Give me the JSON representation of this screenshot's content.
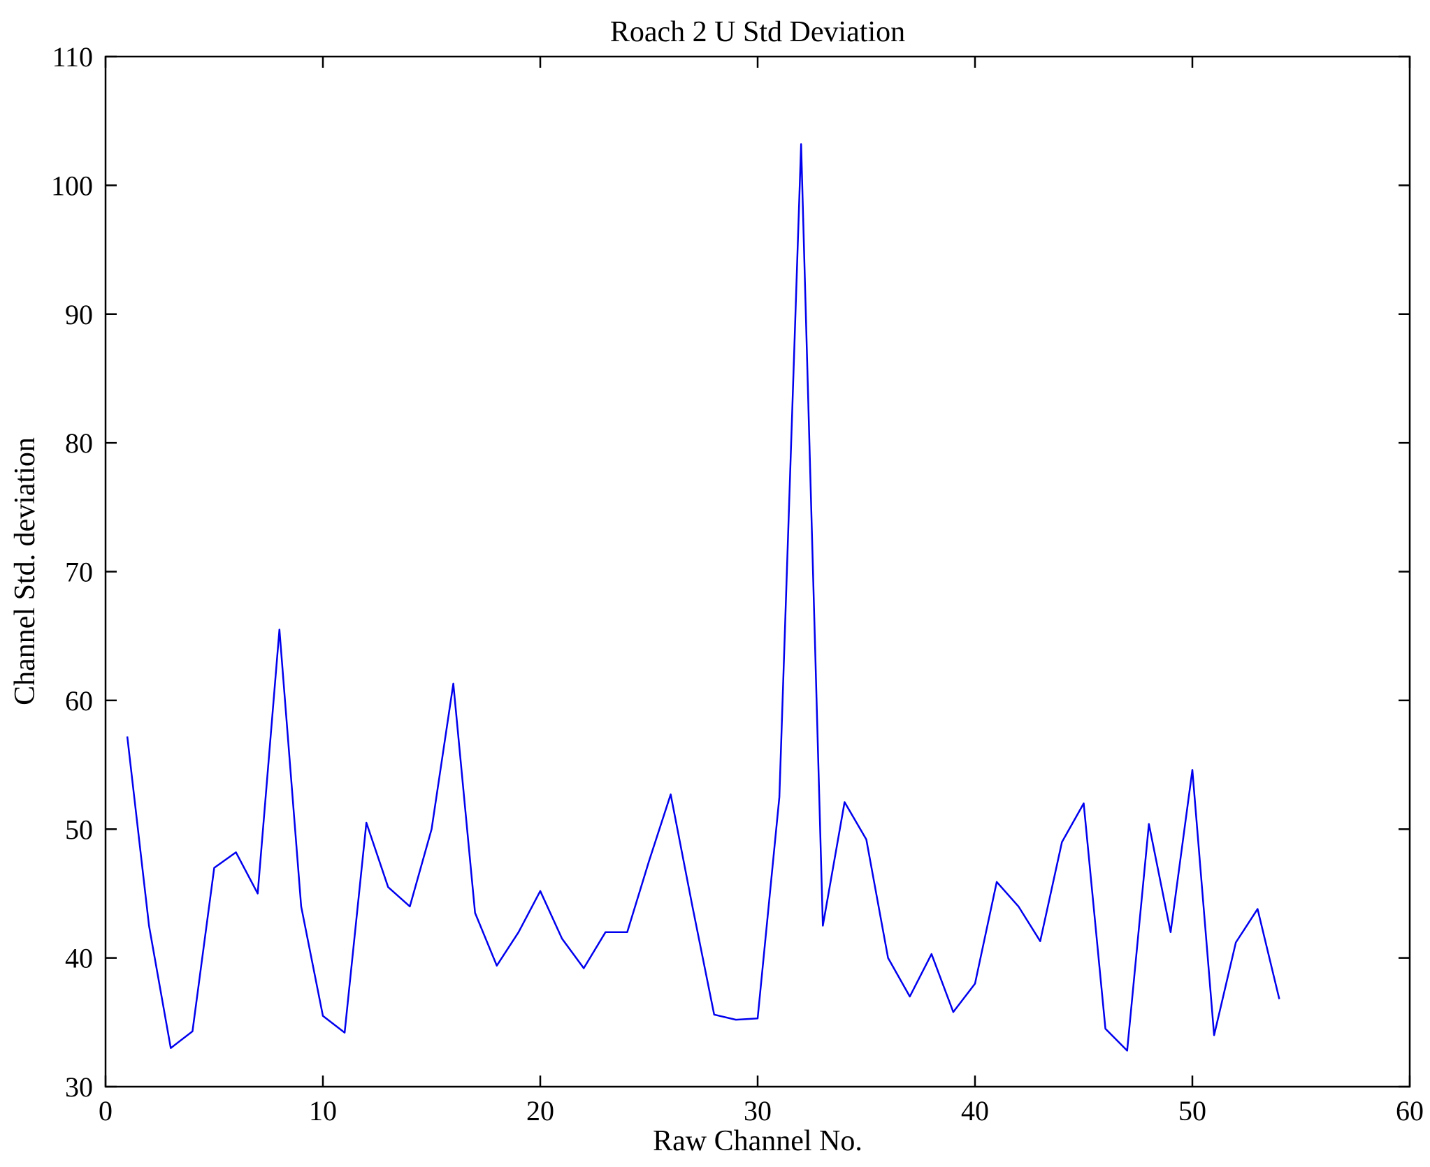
{
  "chart_data": {
    "type": "line",
    "title": "Roach 2 U Std Deviation",
    "xlabel": "Raw Channel No.",
    "ylabel": "Channel Std. deviation",
    "xlim": [
      0,
      60
    ],
    "ylim": [
      30,
      110
    ],
    "xticks": [
      0,
      10,
      20,
      30,
      40,
      50,
      60
    ],
    "yticks": [
      30,
      40,
      50,
      60,
      70,
      80,
      90,
      100,
      110
    ],
    "grid": false,
    "legend": "none",
    "line_color": "#0000EE",
    "frame_color": "#000000",
    "x": [
      1,
      2,
      3,
      4,
      5,
      6,
      7,
      8,
      9,
      10,
      11,
      12,
      13,
      14,
      15,
      16,
      17,
      18,
      19,
      20,
      21,
      22,
      23,
      24,
      25,
      26,
      27,
      28,
      29,
      30,
      31,
      32,
      33,
      34,
      35,
      36,
      37,
      38,
      39,
      40,
      41,
      42,
      43,
      44,
      45,
      46,
      47,
      48,
      49,
      50,
      51,
      52,
      53,
      54
    ],
    "y": [
      57.2,
      42.5,
      33.0,
      34.3,
      47.0,
      48.2,
      45.0,
      65.5,
      44.0,
      35.5,
      34.2,
      50.5,
      45.5,
      44.0,
      50.0,
      61.3,
      43.5,
      39.4,
      42.0,
      45.2,
      41.5,
      39.2,
      42.0,
      42.0,
      47.5,
      52.7,
      44.0,
      35.6,
      35.2,
      35.3,
      52.5,
      103.2,
      42.5,
      52.1,
      49.2,
      40.0,
      37.0,
      40.3,
      35.8,
      38.0,
      45.9,
      44.0,
      41.3,
      49.0,
      52.0,
      34.5,
      32.8,
      50.4,
      42.0,
      54.6,
      34.0,
      41.2,
      43.8,
      36.8
    ]
  }
}
